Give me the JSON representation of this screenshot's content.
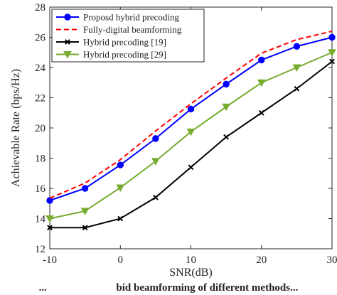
{
  "chart_data": {
    "type": "line",
    "xlabel": "SNR(dB)",
    "ylabel": "Achievable Rate (bps/Hz)",
    "x": [
      -10,
      -5,
      0,
      5,
      10,
      15,
      20,
      25,
      30
    ],
    "xlim": [
      -10,
      30
    ],
    "ylim": [
      12,
      28
    ],
    "xticks": [
      -10,
      0,
      10,
      20,
      30
    ],
    "yticks": [
      12,
      14,
      16,
      18,
      20,
      22,
      24,
      26,
      28
    ],
    "grid": false,
    "legend_position": "top-left",
    "series": [
      {
        "name": "Proposd hybrid precoding",
        "values": [
          15.2,
          16.0,
          17.55,
          19.3,
          21.25,
          22.9,
          24.5,
          25.4,
          26.0
        ],
        "color": "#0000ff",
        "dash": "solid",
        "marker": "circle"
      },
      {
        "name": "Fully-digital beamforming",
        "values": [
          15.35,
          16.35,
          17.9,
          19.8,
          21.6,
          23.3,
          24.95,
          25.85,
          26.4
        ],
        "color": "#ff0000",
        "dash": "dashed",
        "marker": "none"
      },
      {
        "name": "Hybrid precoding [19]",
        "values": [
          13.4,
          13.4,
          14.0,
          15.4,
          17.4,
          19.4,
          21.0,
          22.6,
          24.4
        ],
        "color": "#000000",
        "dash": "solid",
        "marker": "x"
      },
      {
        "name": "Hybrid precoding [29]",
        "values": [
          14.0,
          14.5,
          16.05,
          17.8,
          19.75,
          21.4,
          23.0,
          24.0,
          25.0
        ],
        "color": "#77ac30",
        "dash": "solid",
        "marker": "triangle-down"
      }
    ]
  },
  "caption": {
    "text": "...                          bid beamforming of different methods..."
  }
}
